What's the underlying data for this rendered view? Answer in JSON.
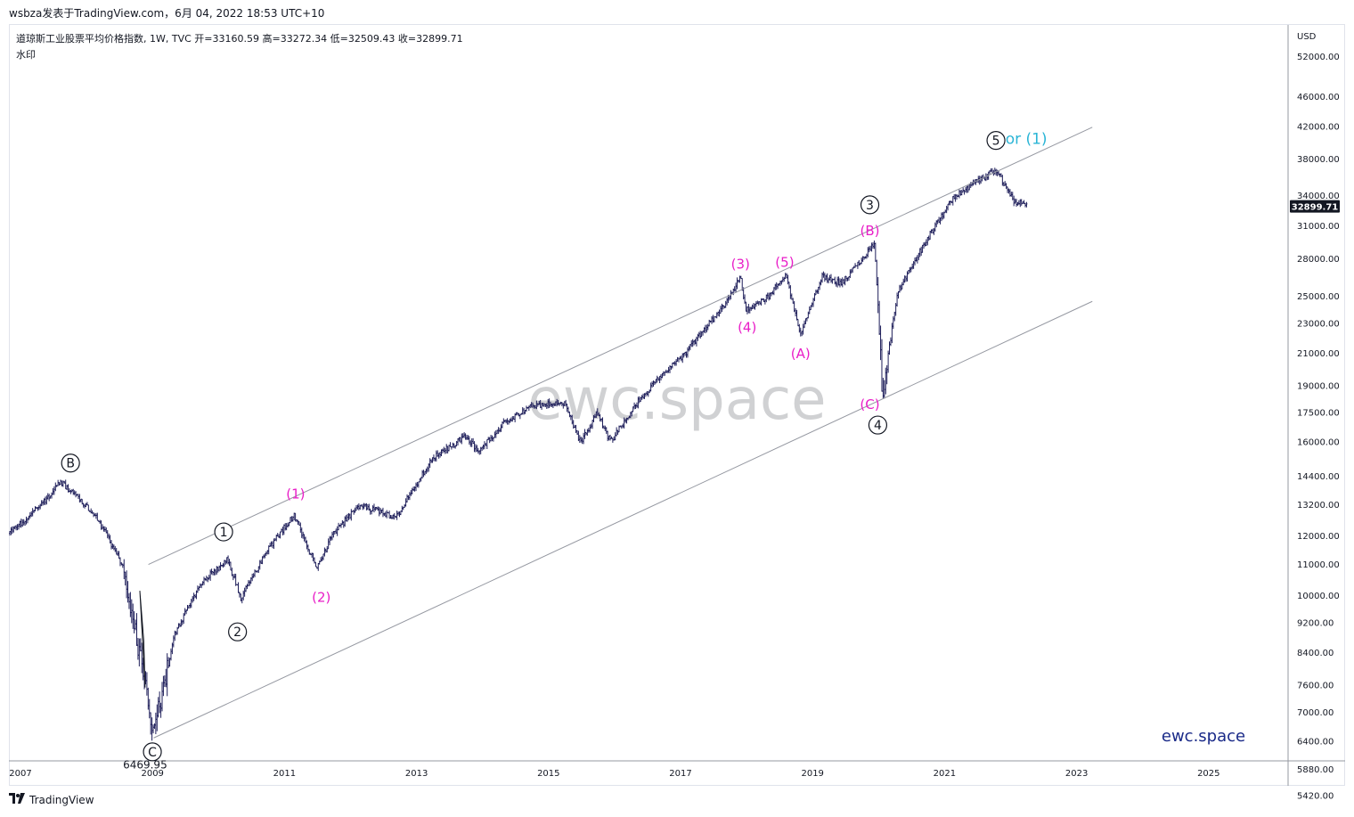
{
  "header": {
    "title": "wsbza发表于TradingView.com，6月 04, 2022 18:53 UTC+10"
  },
  "legend": {
    "line1": "道琼斯工业股票平均价格指数, 1W, TVC  开=33160.59  高=33272.34  低=32509.43  收=32899.71",
    "line2": "水印"
  },
  "footer": {
    "logo_text": "TradingView",
    "logo_icon": "tradingview-logo-icon"
  },
  "chart_data": {
    "type": "candlestick",
    "currency": "USD",
    "y_scale": "log",
    "ylim": [
      5200,
      57000
    ],
    "xlim": [
      2007,
      2026.9
    ],
    "x_ticks": [
      "2007",
      "2009",
      "2011",
      "2013",
      "2015",
      "2017",
      "2019",
      "2021",
      "2023",
      "2025"
    ],
    "y_ticks": [
      "52000.00",
      "46000.00",
      "42000.00",
      "38000.00",
      "34000.00",
      "31000.00",
      "28000.00",
      "25000.00",
      "23000.00",
      "21000.00",
      "19000.00",
      "17500.00",
      "16000.00",
      "14400.00",
      "13200.00",
      "12000.00",
      "11000.00",
      "10000.00",
      "9200.00",
      "8400.00",
      "7600.00",
      "7000.00",
      "6400.00",
      "5880.00",
      "5420.00"
    ],
    "last_price": "32899.71",
    "price_anchors": [
      [
        2007.0,
        12100
      ],
      [
        2007.5,
        13300
      ],
      [
        2007.78,
        14160
      ],
      [
        2008.3,
        12800
      ],
      [
        2008.7,
        11000
      ],
      [
        2008.95,
        8500
      ],
      [
        2009.18,
        6600
      ],
      [
        2009.5,
        8900
      ],
      [
        2009.9,
        10400
      ],
      [
        2010.3,
        11200
      ],
      [
        2010.5,
        9900
      ],
      [
        2010.9,
        11500
      ],
      [
        2011.3,
        12800
      ],
      [
        2011.65,
        10900
      ],
      [
        2011.9,
        12100
      ],
      [
        2012.3,
        13200
      ],
      [
        2012.85,
        12700
      ],
      [
        2013.4,
        15200
      ],
      [
        2013.9,
        16300
      ],
      [
        2014.1,
        15500
      ],
      [
        2014.5,
        17000
      ],
      [
        2014.9,
        17900
      ],
      [
        2015.4,
        18000
      ],
      [
        2015.65,
        16000
      ],
      [
        2015.9,
        17500
      ],
      [
        2016.1,
        16000
      ],
      [
        2016.5,
        18000
      ],
      [
        2016.85,
        19600
      ],
      [
        2017.2,
        20800
      ],
      [
        2017.9,
        24800
      ],
      [
        2018.07,
        26500
      ],
      [
        2018.15,
        24000
      ],
      [
        2018.5,
        25000
      ],
      [
        2018.75,
        26700
      ],
      [
        2018.98,
        22200
      ],
      [
        2019.3,
        26500
      ],
      [
        2019.6,
        26000
      ],
      [
        2020.1,
        29400
      ],
      [
        2020.22,
        18600
      ],
      [
        2020.45,
        25300
      ],
      [
        2020.9,
        29800
      ],
      [
        2021.3,
        33900
      ],
      [
        2021.6,
        35200
      ],
      [
        2021.95,
        36800
      ],
      [
        2022.2,
        33500
      ],
      [
        2022.42,
        32899.71
      ]
    ],
    "channel": {
      "upper": [
        [
          2009.1,
          11000
        ],
        [
          2023.4,
          41900
        ]
      ],
      "lower": [
        [
          2009.18,
          6470
        ],
        [
          2023.4,
          24600
        ]
      ]
    },
    "annotations": [
      {
        "text": "B",
        "style": "circle",
        "color": "#131722",
        "x": 2007.92,
        "price": 15000
      },
      {
        "text": "C",
        "style": "circle",
        "color": "#131722",
        "x": 2009.16,
        "price": 6200
      },
      {
        "text": "1",
        "style": "circle",
        "color": "#131722",
        "x": 2010.24,
        "price": 12150
      },
      {
        "text": "2",
        "style": "circle",
        "color": "#131722",
        "x": 2010.45,
        "price": 8950
      },
      {
        "text": "3",
        "style": "circle",
        "color": "#131722",
        "x": 2020.03,
        "price": 33050
      },
      {
        "text": "4",
        "style": "circle",
        "color": "#131722",
        "x": 2020.15,
        "price": 16850
      },
      {
        "text": "5",
        "style": "circle",
        "color": "#131722",
        "x": 2021.94,
        "price": 40250
      },
      {
        "text": "(1)",
        "style": "text",
        "color": "#e91ec8",
        "x": 2011.33,
        "price": 13650
      },
      {
        "text": "(2)",
        "style": "text",
        "color": "#e91ec8",
        "x": 2011.72,
        "price": 9950
      },
      {
        "text": "(3)",
        "style": "text",
        "color": "#e91ec8",
        "x": 2018.07,
        "price": 27550
      },
      {
        "text": "(4)",
        "style": "text",
        "color": "#e91ec8",
        "x": 2018.17,
        "price": 22700
      },
      {
        "text": "(5)",
        "style": "text",
        "color": "#e91ec8",
        "x": 2018.74,
        "price": 27700
      },
      {
        "text": "(A)",
        "style": "text",
        "color": "#e91ec8",
        "x": 2018.98,
        "price": 20950
      },
      {
        "text": "(B)",
        "style": "text",
        "color": "#e91ec8",
        "x": 2020.03,
        "price": 30550
      },
      {
        "text": "(C)",
        "style": "text",
        "color": "#e91ec8",
        "x": 2020.03,
        "price": 17950
      },
      {
        "text": "or (1)",
        "style": "text",
        "color": "#2bb5d6",
        "x": 2022.4,
        "price": 40350
      }
    ],
    "low_label": {
      "text": "6469.95",
      "x": 2009.05,
      "price": 5960
    },
    "watermark": "ewc.space",
    "brand_label": "ewc.space",
    "colors": {
      "candle": "#1e1e5a",
      "channel": "#9598a1",
      "wave_black": "#131722",
      "wave_magenta": "#e91ec8",
      "wave_cyan": "#2bb5d6",
      "brand": "#1a2a88"
    }
  }
}
